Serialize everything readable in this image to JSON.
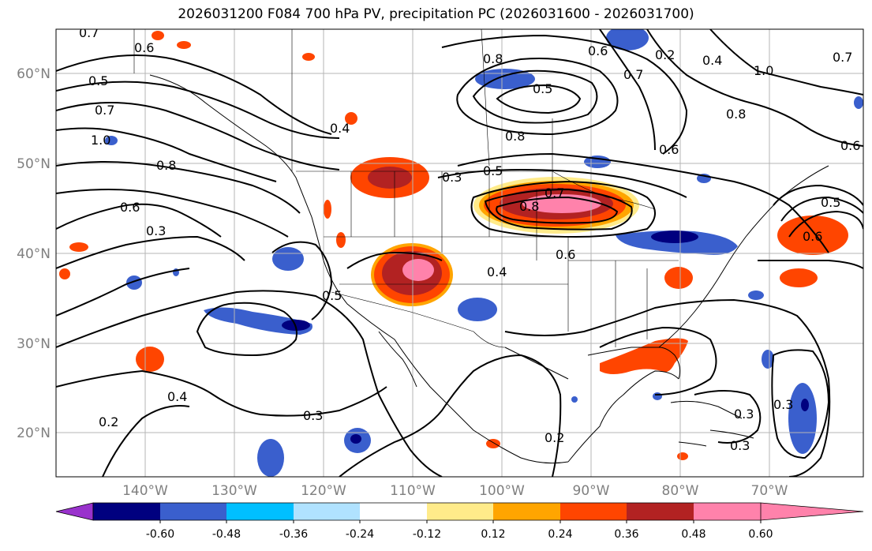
{
  "title": "2026031200 F084 700 hPa PV, precipitation PC (2026031600 - 2026031700)",
  "lat_labels": [
    "60°N",
    "50°N",
    "40°N",
    "30°N",
    "20°N"
  ],
  "lon_labels": [
    "140°W",
    "130°W",
    "120°W",
    "110°W",
    "100°W",
    "90°W",
    "80°W",
    "70°W"
  ],
  "contour_labels": [
    "0.7",
    "0.6",
    "0.5",
    "0.7",
    "1.0",
    "0.8",
    "0.6",
    "0.3",
    "0.4",
    "0.5",
    "0.4",
    "0.3",
    "0.2",
    "0.8",
    "0.5",
    "0.3",
    "0.4",
    "0.8",
    "0.6",
    "0.7",
    "0.8",
    "0.6",
    "0.8",
    "0.4",
    "0.5",
    "1.0",
    "0.6",
    "0.7",
    "0.6",
    "0.2",
    "0.3",
    "0.3",
    "0.2",
    "0.5",
    "0.6",
    "0.7",
    "0.3"
  ],
  "colorbar": {
    "colors": [
      "#9932cc",
      "#00007f",
      "#3a5fcd",
      "#00bfff",
      "#b0e2ff",
      "#ffffff",
      "#ffeb8a",
      "#ffa500",
      "#ff4500",
      "#b22222",
      "#ff82ab"
    ],
    "ticks": [
      "-0.60",
      "-0.48",
      "-0.36",
      "-0.24",
      "-0.12",
      "0.12",
      "0.24",
      "0.36",
      "0.48",
      "0.60"
    ]
  }
}
